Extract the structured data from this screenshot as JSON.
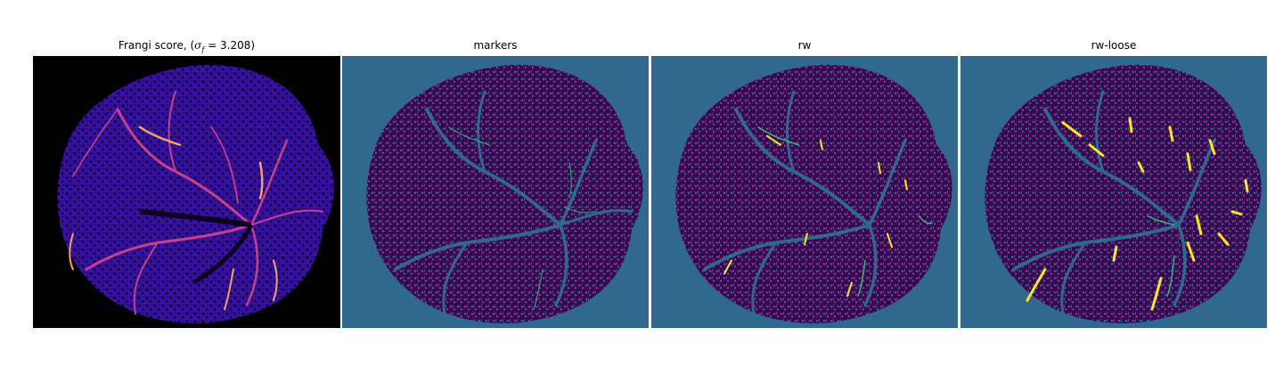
{
  "figure": {
    "panels": [
      {
        "id": "frangi",
        "title_prefix": "Frangi score, (",
        "title_math": "σ",
        "title_sub": "f",
        "title_suffix": " = 3.208)",
        "background": "#000000",
        "colormap": "magma"
      },
      {
        "id": "markers",
        "title": "markers",
        "background": "#31688e",
        "colormap": "viridis"
      },
      {
        "id": "rw",
        "title": "rw",
        "background": "#31688e",
        "colormap": "viridis"
      },
      {
        "id": "rw-loose",
        "title": "rw-loose",
        "background": "#31688e",
        "colormap": "viridis"
      }
    ]
  },
  "colors": {
    "magma_dark": "#1a0a3d",
    "magma_purple": "#3b0f9e",
    "magma_pink": "#c83f8a",
    "magma_orange": "#f6a06a",
    "viridis_purple": "#440154",
    "viridis_teal": "#31688e",
    "viridis_green": "#35b779",
    "viridis_yellow": "#fde725"
  }
}
